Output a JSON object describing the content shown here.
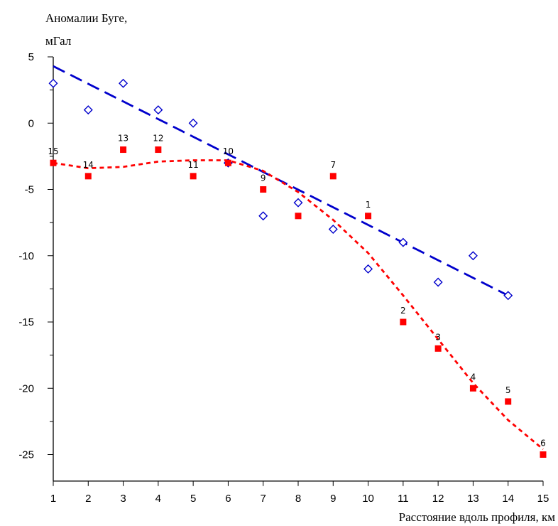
{
  "chart_data": {
    "type": "scatter",
    "ylabel": [
      "Аномалии Буге,",
      "мГал"
    ],
    "xlabel": "Расстояние вдоль профиля, км",
    "xlim": [
      1,
      15
    ],
    "ylim": [
      -27,
      5
    ],
    "x_ticks": [
      1,
      2,
      3,
      4,
      5,
      6,
      7,
      8,
      9,
      10,
      11,
      12,
      13,
      14,
      15
    ],
    "y_ticks": [
      5,
      0,
      -5,
      -10,
      -15,
      -20,
      -25
    ],
    "series": [
      {
        "marker": "diamond-open",
        "color": "#0000cc",
        "points": [
          [
            1,
            3
          ],
          [
            2,
            1
          ],
          [
            3,
            3
          ],
          [
            4,
            1
          ],
          [
            5,
            0
          ],
          [
            6,
            -3
          ],
          [
            7,
            -7
          ],
          [
            8,
            -6
          ],
          [
            9,
            -8
          ],
          [
            10,
            -11
          ],
          [
            11,
            -9
          ],
          [
            12,
            -12
          ],
          [
            13,
            -10
          ],
          [
            14,
            -13
          ]
        ]
      },
      {
        "marker": "square-filled",
        "color": "#ff0000",
        "points": [
          {
            "x": 1,
            "y": -3,
            "label": "15"
          },
          {
            "x": 2,
            "y": -4,
            "label": "14"
          },
          {
            "x": 3,
            "y": -2,
            "label": "13"
          },
          {
            "x": 4,
            "y": -2,
            "label": "12"
          },
          {
            "x": 5,
            "y": -4,
            "label": "11"
          },
          {
            "x": 6,
            "y": -3,
            "label": "10"
          },
          {
            "x": 7,
            "y": -5,
            "label": "9"
          },
          {
            "x": 8,
            "y": -7,
            "label": ""
          },
          {
            "x": 9,
            "y": -4,
            "label": "7"
          },
          {
            "x": 10,
            "y": -7,
            "label": "1"
          },
          {
            "x": 11,
            "y": -15,
            "label": "2"
          },
          {
            "x": 12,
            "y": -17,
            "label": "3"
          },
          {
            "x": 13,
            "y": -20,
            "label": "4"
          },
          {
            "x": 14,
            "y": -21,
            "label": "5"
          },
          {
            "x": 15,
            "y": -25,
            "label": "6"
          }
        ]
      }
    ],
    "trend_lines": [
      {
        "style": "long-dash",
        "color": "#0000cc",
        "points": [
          [
            1,
            4.3
          ],
          [
            14,
            -13
          ]
        ]
      },
      {
        "style": "short-dash",
        "color": "#ff0000",
        "points": [
          [
            1,
            -3
          ],
          [
            2,
            -3.4
          ],
          [
            3,
            -3.3
          ],
          [
            4,
            -2.9
          ],
          [
            5,
            -2.8
          ],
          [
            6,
            -2.8
          ],
          [
            7,
            -3.6
          ],
          [
            8,
            -5.2
          ],
          [
            9,
            -7.3
          ],
          [
            10,
            -9.8
          ],
          [
            11,
            -13
          ],
          [
            12,
            -16.3
          ],
          [
            13,
            -19.6
          ],
          [
            14,
            -22.4
          ],
          [
            15,
            -24.6
          ]
        ]
      }
    ]
  }
}
